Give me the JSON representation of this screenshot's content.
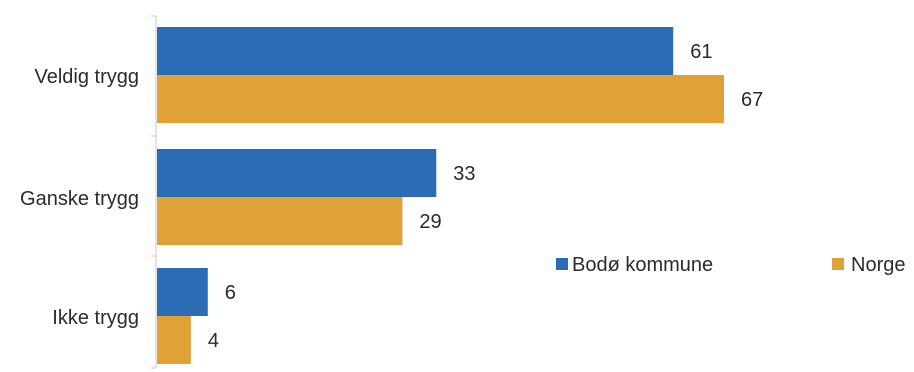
{
  "chart_data": {
    "type": "bar",
    "orientation": "horizontal",
    "categories": [
      "Veldig trygg",
      "Ganske trygg",
      "Ikke trygg"
    ],
    "series": [
      {
        "name": "Bodø kommune",
        "values": [
          61,
          33,
          6
        ],
        "color": "#2b6cb5"
      },
      {
        "name": "Norge",
        "values": [
          67,
          29,
          4
        ],
        "color": "#e0a136"
      }
    ],
    "xlim": [
      0,
      67
    ],
    "grid": false,
    "legend_position": "right"
  }
}
